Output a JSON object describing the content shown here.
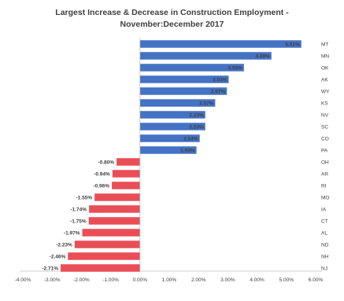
{
  "chart_data": {
    "type": "bar",
    "orientation": "horizontal",
    "title_line1": "Largest Increase & Decrease in Construction Employment -",
    "title_line2": "November:December 2017",
    "xlim": [
      -4.0,
      6.0
    ],
    "x_ticks": [
      "-4.00%",
      "-3.00%",
      "-2.00%",
      "-1.00%",
      "0.00%",
      "1.00%",
      "2.00%",
      "3.00%",
      "4.00%",
      "5.00%",
      "6.00%"
    ],
    "grid": false,
    "colors": {
      "positive": "#4472c4",
      "negative": "#e94e57",
      "text": "#404040",
      "axis": "#bfbfbf"
    },
    "bars": [
      {
        "category": "MT",
        "value": 5.51,
        "label": "5.51%"
      },
      {
        "category": "MN",
        "value": 4.49,
        "label": "4.49%"
      },
      {
        "category": "OK",
        "value": 3.55,
        "label": "3.55%"
      },
      {
        "category": "AK",
        "value": 3.03,
        "label": "3.03%"
      },
      {
        "category": "WY",
        "value": 2.97,
        "label": "2.97%"
      },
      {
        "category": "KS",
        "value": 2.57,
        "label": "2.57%"
      },
      {
        "category": "NV",
        "value": 2.23,
        "label": "2.23%"
      },
      {
        "category": "SC",
        "value": 2.23,
        "label": "2.23%"
      },
      {
        "category": "CO",
        "value": 2.04,
        "label": "2.04%"
      },
      {
        "category": "PA",
        "value": 1.93,
        "label": "1.93%"
      },
      {
        "category": "OH",
        "value": -0.8,
        "label": "-0.80%"
      },
      {
        "category": "AR",
        "value": -0.94,
        "label": "-0.94%"
      },
      {
        "category": "RI",
        "value": -0.96,
        "label": "-0.96%"
      },
      {
        "category": "MO",
        "value": -1.55,
        "label": "-1.55%"
      },
      {
        "category": "IA",
        "value": -1.74,
        "label": "-1.74%"
      },
      {
        "category": "CT",
        "value": -1.75,
        "label": "-1.75%"
      },
      {
        "category": "AL",
        "value": -1.97,
        "label": "-1.97%"
      },
      {
        "category": "ND",
        "value": -2.23,
        "label": "-2.23%"
      },
      {
        "category": "NH",
        "value": -2.46,
        "label": "-2.46%"
      },
      {
        "category": "NJ",
        "value": -2.71,
        "label": "-2.71%"
      }
    ]
  }
}
